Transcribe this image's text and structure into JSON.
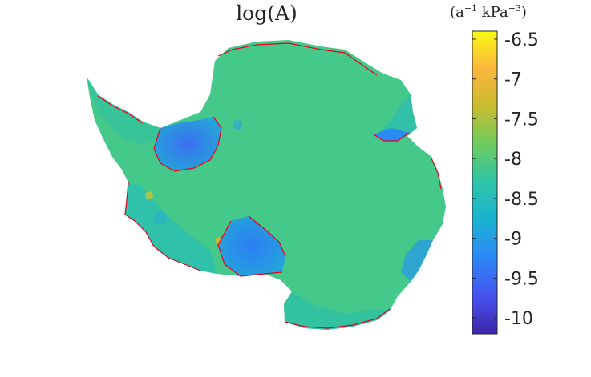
{
  "title": "log(A)",
  "units": {
    "prefix": "(a",
    "exp1": "−1",
    "mid": " kPa",
    "exp2": "−3",
    "suffix": ")"
  },
  "colorbar": {
    "min": -10.2,
    "max": -6.4,
    "ticks": [
      {
        "value": -6.5,
        "label": "-6.5"
      },
      {
        "value": -7,
        "label": "-7"
      },
      {
        "value": -7.5,
        "label": "-7.5"
      },
      {
        "value": -8,
        "label": "-8"
      },
      {
        "value": -8.5,
        "label": "-8.5"
      },
      {
        "value": -9,
        "label": "-9"
      },
      {
        "value": -9.5,
        "label": "-9.5"
      },
      {
        "value": -10,
        "label": "-10"
      }
    ],
    "colormap": [
      "#3e26a8",
      "#4653f0",
      "#2e87f7",
      "#1ab2d2",
      "#2ec4a8",
      "#6ccb5f",
      "#c9bc30",
      "#fbb63e",
      "#f9fb14"
    ]
  },
  "map": {
    "ice_color": "#44c98a",
    "grounding_line_color": "#e8001a"
  }
}
